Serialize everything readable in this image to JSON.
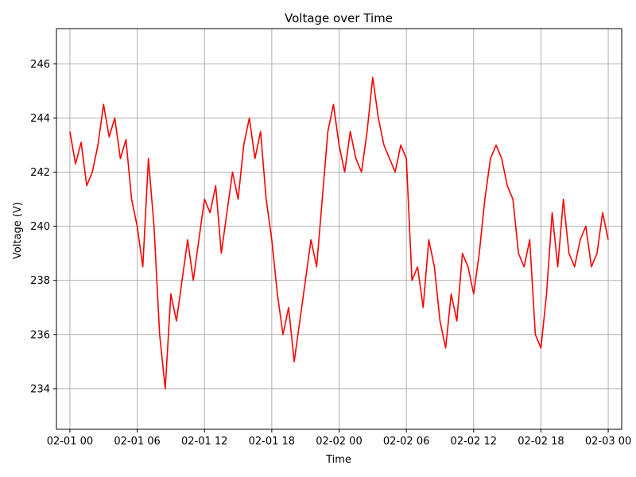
{
  "chart_data": {
    "type": "line",
    "title": "Voltage over Time",
    "xlabel": "Time",
    "ylabel": "Voltage (V)",
    "grid": true,
    "line_color": "#ff0000",
    "x_start": "2023-02-01 00:00",
    "x_ticks": [
      "02-01 00",
      "02-01 06",
      "02-01 12",
      "02-01 18",
      "02-02 00",
      "02-02 06",
      "02-02 12",
      "02-02 18",
      "02-03 00"
    ],
    "xlim_hours": [
      -1.2,
      49.2
    ],
    "y_ticks": [
      234,
      236,
      238,
      240,
      242,
      244,
      246
    ],
    "ylim": [
      232.5,
      247.3
    ],
    "series": [
      {
        "name": "",
        "x_hours": [
          0,
          0.5,
          1,
          1.5,
          2,
          2.5,
          3,
          3.5,
          4,
          4.5,
          5,
          5.5,
          6,
          6.5,
          7,
          7.5,
          8,
          8.5,
          9,
          9.5,
          10,
          10.5,
          11,
          11.5,
          12,
          12.5,
          13,
          13.5,
          14,
          14.5,
          15,
          15.5,
          16,
          16.5,
          17,
          17.5,
          18,
          18.5,
          19,
          19.5,
          20,
          20.5,
          21,
          21.5,
          22,
          22.5,
          23,
          23.5,
          24,
          24.5,
          25,
          25.5,
          26,
          26.5,
          27,
          27.5,
          28,
          28.5,
          29,
          29.5,
          30,
          30.5,
          31,
          31.5,
          32,
          32.5,
          33,
          33.5,
          34,
          34.5,
          35,
          35.5,
          36,
          36.5,
          37,
          37.5,
          38,
          38.5,
          39,
          39.5,
          40,
          40.5,
          41,
          41.5,
          42,
          42.5,
          43,
          43.5,
          44,
          44.5,
          45,
          45.5,
          46,
          46.5,
          47,
          47.5,
          48
        ],
        "values": [
          243.5,
          242.3,
          243.1,
          241.5,
          242.0,
          243.0,
          244.5,
          243.3,
          244.0,
          242.5,
          243.2,
          241.0,
          240.0,
          238.5,
          242.5,
          240.0,
          236.0,
          234.0,
          237.5,
          236.5,
          238.0,
          239.5,
          238.0,
          239.5,
          241.0,
          240.5,
          241.5,
          239.0,
          240.5,
          242.0,
          241.0,
          243.0,
          244.0,
          242.5,
          243.5,
          241.0,
          239.5,
          237.5,
          236.0,
          237.0,
          235.0,
          236.5,
          238.0,
          239.5,
          238.5,
          241.0,
          243.5,
          244.5,
          243.0,
          242.0,
          243.5,
          242.5,
          242.0,
          243.5,
          245.5,
          244.0,
          243.0,
          242.5,
          242.0,
          243.0,
          242.5,
          238.0,
          238.5,
          237.0,
          239.5,
          238.5,
          236.5,
          235.5,
          237.5,
          236.5,
          239.0,
          238.5,
          237.5,
          239.0,
          241.0,
          242.5,
          243.0,
          242.5,
          241.5,
          241.0,
          239.0,
          238.5,
          239.5,
          236.0,
          235.5,
          237.5,
          240.5,
          238.5,
          241.0,
          239.0,
          238.5,
          239.5,
          240.0,
          238.5,
          239.0,
          240.5,
          239.5
        ]
      }
    ]
  }
}
